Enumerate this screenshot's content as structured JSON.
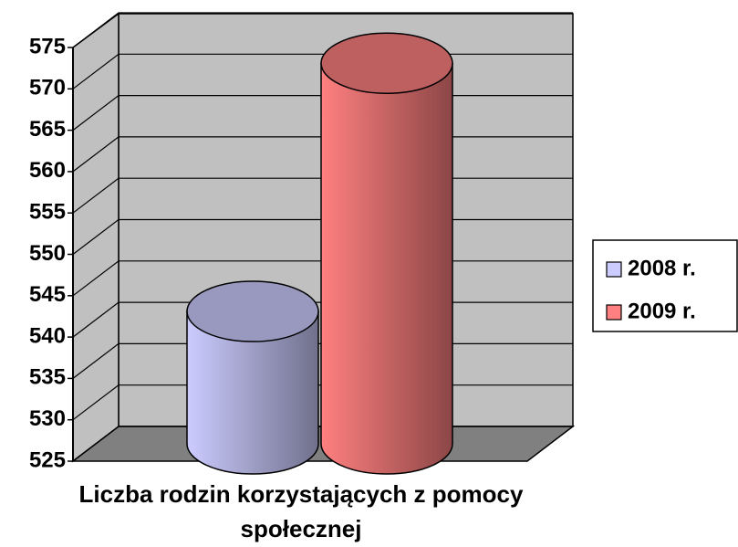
{
  "chart_data": {
    "type": "cylinder",
    "categories": [
      "Liczba rodzin korzystających z pomocy społecznej"
    ],
    "series": [
      {
        "name": "2008 r.",
        "color": "#ccccff",
        "values": [
          541
        ]
      },
      {
        "name": "2009 r.",
        "color": "#ff8080",
        "values": [
          571
        ]
      }
    ],
    "ylim": [
      525,
      575
    ],
    "yticks": [
      525,
      530,
      535,
      540,
      545,
      550,
      555,
      560,
      565,
      570,
      575
    ],
    "grid": true,
    "legend": "right"
  }
}
